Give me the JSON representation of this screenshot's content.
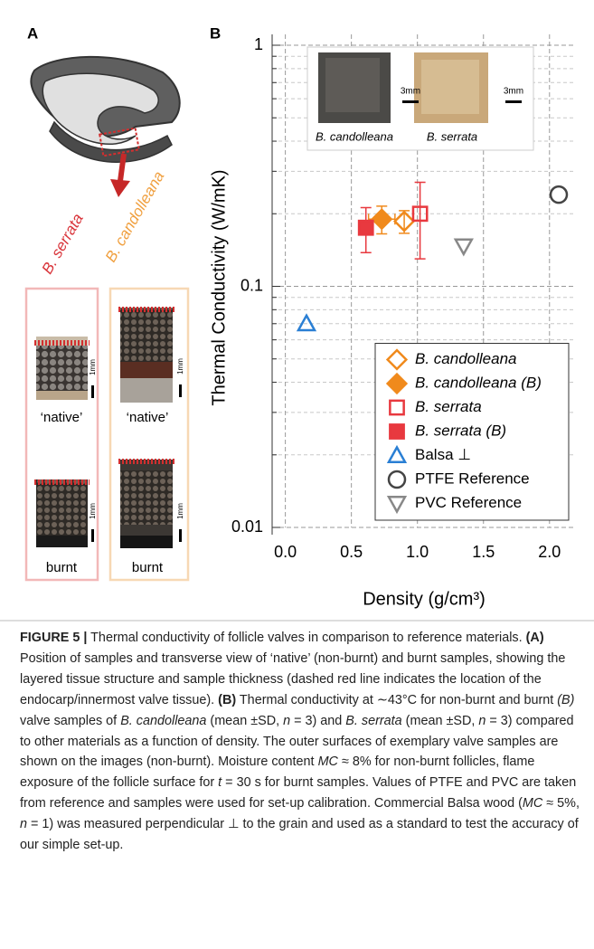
{
  "panel_labels": [
    "A",
    "B"
  ],
  "panel_a": {
    "species": [
      "B. serrata",
      "B. candolleana"
    ],
    "states": [
      "‘native’",
      "burnt",
      "‘native’",
      "burnt"
    ],
    "scale": [
      "1mm",
      "1mm",
      "1mm",
      "1mm"
    ]
  },
  "inset": {
    "labels": [
      "B. candolleana",
      "B. serrata"
    ],
    "scale": [
      "3mm",
      "3mm"
    ]
  },
  "chart_data": {
    "type": "scatter",
    "x_label": "Density (g/cm³)",
    "y_label": "Thermal Conductivity (W/mK)",
    "xlim": [
      -0.1,
      2.2
    ],
    "xticks": [
      {
        "value": 0,
        "label": "0.0"
      },
      0.5,
      {
        "value": 1,
        "label": "1.0"
      },
      1.5,
      {
        "value": 2,
        "label": "2.0"
      }
    ],
    "ylim": [
      0.01,
      1
    ],
    "log_y": true,
    "yticks": [
      0.01,
      0.1,
      1
    ],
    "yminor": [
      0.02,
      0.03,
      0.04,
      0.05,
      0.06,
      0.07,
      0.08,
      0.09,
      0.2,
      0.3,
      0.4,
      0.5,
      0.6,
      0.7,
      0.8,
      0.9
    ],
    "grid": true,
    "legend": "lower right",
    "series": [
      {
        "name": "B. candolleana",
        "color": "#f08a1c",
        "marker": "diamond",
        "filled": false,
        "x": [
          0.9
        ],
        "values": [
          0.186
        ],
        "yerr": [
          0.02
        ]
      },
      {
        "name": "B. candolleana (B)",
        "color": "#f08a1c",
        "marker": "diamond",
        "filled": true,
        "x": [
          0.73
        ],
        "values": [
          0.19
        ],
        "yerr": [
          0.025
        ],
        "xerr": [
          0.1
        ]
      },
      {
        "name": "B. serrata",
        "color": "#e8393f",
        "marker": "square",
        "filled": false,
        "x": [
          1.02
        ],
        "values": [
          0.2
        ],
        "yerr": [
          0.07
        ]
      },
      {
        "name": "B. serrata (B)",
        "color": "#e8393f",
        "marker": "square",
        "filled": true,
        "x": [
          0.61
        ],
        "values": [
          0.175
        ],
        "yerr": [
          0.037
        ]
      },
      {
        "name": "Balsa ⊥",
        "color": "#2a7fd4",
        "marker": "triangle",
        "filled": false,
        "x": [
          0.16
        ],
        "values": [
          0.07
        ]
      },
      {
        "name": "PTFE Reference",
        "color": "#444444",
        "marker": "circle",
        "filled": false,
        "x": [
          2.07
        ],
        "values": [
          0.24
        ]
      },
      {
        "name": "PVC Reference",
        "color": "#888888",
        "marker": "triangle-down",
        "filled": false,
        "x": [
          1.35
        ],
        "values": [
          0.147
        ]
      }
    ]
  },
  "caption": [
    "FIGURE 5 |",
    " Thermal conductivity of follicle valves in comparison to reference materials. ",
    "(A)",
    " Position of samples and transverse view of ‘native’ (non-burnt) and burnt samples, showing the layered tissue structure and sample thickness (dashed red line indicates the location of the endocarp/innermost valve tissue). ",
    "(B)",
    " Thermal conductivity at ∼43°C for non-burnt and burnt ",
    "(B)",
    " valve samples of ",
    "B. candolleana",
    " (mean ±SD, ",
    "n",
    " = 3) and ",
    "B. serrata",
    " (mean ±SD, ",
    "n",
    " = 3) compared to other materials as a function of density. The outer surfaces of exemplary valve samples are shown on the images (non-burnt). Moisture content ",
    "MC",
    " ≈ 8% for non-burnt follicles, flame exposure of the follicle surface for ",
    "t",
    " = 30 s for burnt samples. Values of PTFE and PVC are taken from reference and samples were used for set-up calibration. Commercial Balsa wood (",
    "MC",
    " ≈ 5%, ",
    "n",
    " = 1) was measured perpendicular ⊥ to the grain and used as a standard to test the accuracy of our simple set-up."
  ]
}
